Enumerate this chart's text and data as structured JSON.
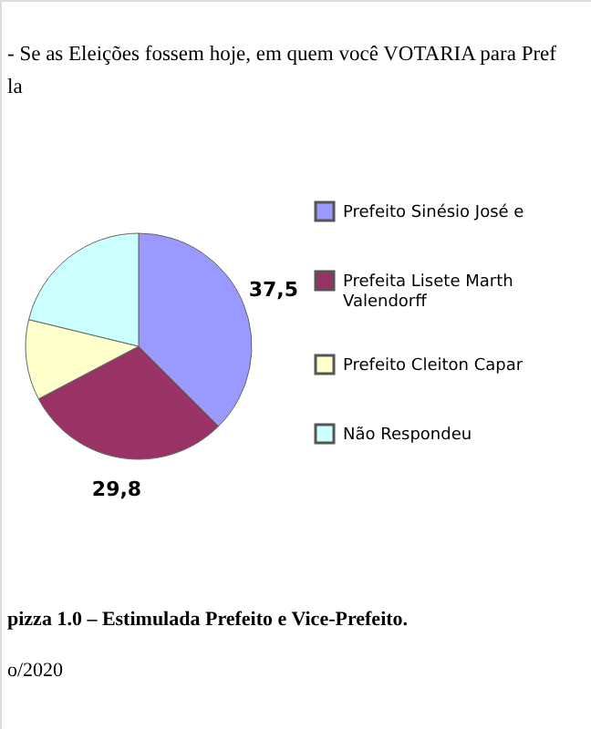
{
  "chart_data": {
    "type": "pie",
    "title": "- Se as Eleições fossem hoje, em quem você VOTARIA  para Pref\nla",
    "categories": [
      "Prefeito Sinésio José e",
      "Prefeita Lisete Marth Valendorff",
      "Prefeito Cleiton Capar",
      "Não Respondeu"
    ],
    "values": [
      37.5,
      29.8,
      11.5,
      21.2
    ],
    "value_labels": [
      "37,5",
      "29,8",
      null,
      null
    ],
    "colors": [
      "#9999ff",
      "#993366",
      "#ffffcc",
      "#ccffff"
    ],
    "legend": "right",
    "annotations": [
      "pizza 1.0 – Estimulada Prefeito e Vice-Prefeito.",
      "o/2020"
    ]
  }
}
